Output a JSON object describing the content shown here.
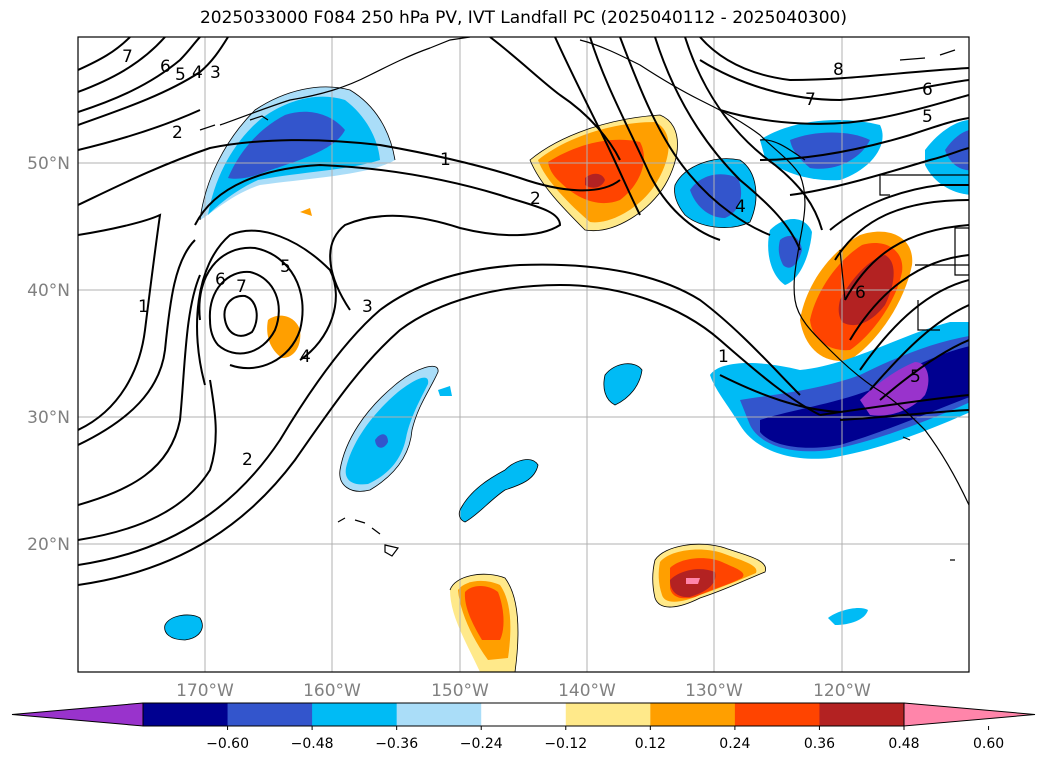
{
  "title": "2025033000 F084 250 hPa PV, IVT Landfall PC (2025040112 - 2025040300)",
  "lat_labels": [
    "50°N",
    "40°N",
    "30°N",
    "20°N"
  ],
  "lon_labels": [
    "170°W",
    "160°W",
    "150°W",
    "140°W",
    "130°W",
    "120°W"
  ],
  "colorbar": {
    "ticks": [
      "−0.60",
      "−0.48",
      "−0.36",
      "−0.24",
      "−0.12",
      "0.12",
      "0.24",
      "0.36",
      "0.48",
      "0.60"
    ],
    "colors": [
      "#9933cc",
      "#000090",
      "#3355cc",
      "#00bbf5",
      "#aaddf8",
      "#ffffff",
      "#ffe98a",
      "#ff9f00",
      "#ff4400",
      "#b32222",
      "#ff85aa"
    ]
  },
  "contour_labels": [
    {
      "text": "7",
      "name": "contour-label-7-nw"
    },
    {
      "text": "6",
      "name": "contour-label-6-nw"
    },
    {
      "text": "5",
      "name": "contour-label-5-nw"
    },
    {
      "text": "4",
      "name": "contour-label-4-nw"
    },
    {
      "text": "3",
      "name": "contour-label-3-nw"
    },
    {
      "text": "2",
      "name": "contour-label-2-nw"
    },
    {
      "text": "1",
      "name": "contour-label-1-west"
    },
    {
      "text": "6",
      "name": "contour-label-6-low"
    },
    {
      "text": "7",
      "name": "contour-label-7-low"
    },
    {
      "text": "5",
      "name": "contour-label-5-low"
    },
    {
      "text": "4",
      "name": "contour-label-4-low"
    },
    {
      "text": "3",
      "name": "contour-label-3-mid"
    },
    {
      "text": "2",
      "name": "contour-label-2-south"
    },
    {
      "text": "1",
      "name": "contour-label-1-north"
    },
    {
      "text": "2",
      "name": "contour-label-2-north"
    },
    {
      "text": "4",
      "name": "contour-label-4-east"
    },
    {
      "text": "1",
      "name": "contour-label-1-east"
    },
    {
      "text": "6",
      "name": "contour-label-6-east"
    },
    {
      "text": "5",
      "name": "contour-label-5-east"
    },
    {
      "text": "8",
      "name": "contour-label-8-ne"
    },
    {
      "text": "7",
      "name": "contour-label-7-ne"
    },
    {
      "text": "6",
      "name": "contour-label-6-ne"
    },
    {
      "text": "5",
      "name": "contour-label-5-ne"
    }
  ]
}
